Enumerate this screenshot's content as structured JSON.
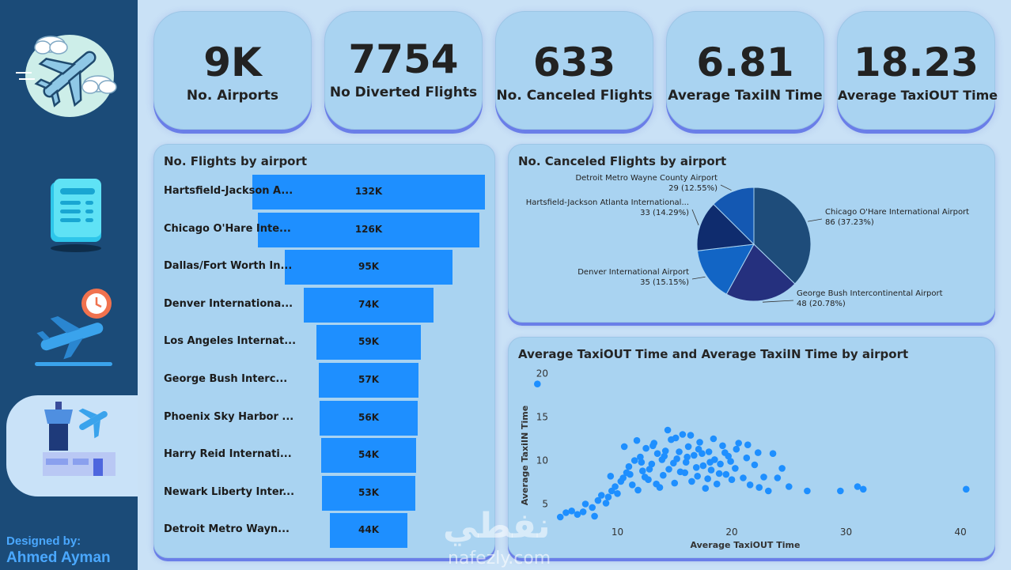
{
  "sidebar": {
    "designer_line1": "Designed by:",
    "designer_line2": "Ahmed Ayman",
    "icons": [
      "airplane-clouds-icon",
      "document-list-icon",
      "departure-clock-icon",
      "control-tower-icon"
    ]
  },
  "kpis": [
    {
      "value": "9K",
      "label": "No. Airports"
    },
    {
      "value": "7754",
      "label": "No Diverted Flights"
    },
    {
      "value": "633",
      "label": "No. Canceled Flights"
    },
    {
      "value": "6.81",
      "label": "Average TaxiIN Time"
    },
    {
      "value": "18.23",
      "label": "Average TaxiOUT Time"
    }
  ],
  "watermark": {
    "arabic": "نفطي",
    "latin": "nafezly.com"
  },
  "colors": {
    "bar": "#1e8fff",
    "sidebar": "#1b4b78",
    "scatter": "#1e8fff"
  },
  "chart_data": [
    {
      "type": "bar",
      "title": "No. Flights by airport",
      "orientation": "horizontal-funnel",
      "categories": [
        "Hartsfield-Jackson A...",
        "Chicago O'Hare Inte...",
        "Dallas/Fort Worth In...",
        "Denver Internationa...",
        "Los Angeles Internat...",
        "George Bush Interc...",
        "Phoenix Sky Harbor ...",
        "Harry Reid Internati...",
        "Newark Liberty Inter...",
        "Detroit Metro Wayn..."
      ],
      "values": [
        132,
        126,
        95,
        74,
        59,
        57,
        56,
        54,
        53,
        44
      ],
      "labels": [
        "132K",
        "126K",
        "95K",
        "74K",
        "59K",
        "57K",
        "56K",
        "54K",
        "53K",
        "44K"
      ]
    },
    {
      "type": "pie",
      "title": "No. Canceled Flights by airport",
      "slices": [
        {
          "name": "Chicago O'Hare International Airport",
          "value": 86,
          "pct": "37.23%",
          "label": "86 (37.23%)",
          "color": "#1e4c7a"
        },
        {
          "name": "George Bush Intercontinental Airport",
          "value": 48,
          "pct": "20.78%",
          "label": "48 (20.78%)",
          "color": "#25307e"
        },
        {
          "name": "Denver International Airport",
          "value": 35,
          "pct": "15.15%",
          "label": "35 (15.15%)",
          "color": "#1265c5"
        },
        {
          "name": "Hartsfield-Jackson Atlanta International...",
          "value": 33,
          "pct": "14.29%",
          "label": "33 (14.29%)",
          "color": "#0f2c6e"
        },
        {
          "name": "Detroit Metro Wayne County Airport",
          "value": 29,
          "pct": "12.55%",
          "label": "29 (12.55%)",
          "color": "#1458b2"
        }
      ]
    },
    {
      "type": "scatter",
      "title": "Average TaxiOUT Time and Average TaxiIN Time by airport",
      "xlabel": "Average TaxiOUT Time",
      "ylabel": "Average TaxiIN Time",
      "xlim": [
        4.5,
        42
      ],
      "ylim": [
        2.5,
        20.5
      ],
      "xticks": [
        10,
        20,
        30,
        40
      ],
      "yticks": [
        5,
        10,
        15,
        20
      ],
      "points": [
        [
          3.0,
          18.8
        ],
        [
          5.0,
          3.5
        ],
        [
          5.5,
          4.0
        ],
        [
          6.0,
          4.2
        ],
        [
          6.5,
          3.8
        ],
        [
          7.0,
          4.1
        ],
        [
          7.2,
          5.0
        ],
        [
          7.8,
          4.6
        ],
        [
          8.0,
          3.6
        ],
        [
          8.3,
          5.4
        ],
        [
          8.6,
          6.0
        ],
        [
          9.0,
          5.1
        ],
        [
          9.2,
          5.8
        ],
        [
          9.5,
          6.5
        ],
        [
          9.8,
          7.0
        ],
        [
          10.0,
          6.2
        ],
        [
          10.3,
          7.6
        ],
        [
          10.5,
          8.0
        ],
        [
          10.8,
          8.6
        ],
        [
          11.0,
          9.3
        ],
        [
          11.3,
          7.2
        ],
        [
          11.5,
          10.0
        ],
        [
          11.8,
          6.6
        ],
        [
          12.0,
          10.4
        ],
        [
          12.2,
          8.8
        ],
        [
          12.5,
          11.4
        ],
        [
          12.7,
          7.8
        ],
        [
          13.0,
          9.6
        ],
        [
          13.2,
          12.0
        ],
        [
          13.5,
          10.8
        ],
        [
          13.7,
          6.9
        ],
        [
          14.0,
          8.3
        ],
        [
          14.2,
          11.1
        ],
        [
          14.5,
          9.0
        ],
        [
          14.7,
          12.4
        ],
        [
          15.0,
          7.4
        ],
        [
          15.2,
          10.2
        ],
        [
          15.5,
          8.7
        ],
        [
          15.7,
          13.0
        ],
        [
          16.0,
          9.8
        ],
        [
          16.2,
          11.6
        ],
        [
          16.5,
          7.6
        ],
        [
          16.7,
          10.6
        ],
        [
          17.0,
          8.2
        ],
        [
          17.2,
          12.1
        ],
        [
          17.5,
          9.4
        ],
        [
          17.7,
          6.8
        ],
        [
          18.0,
          11.0
        ],
        [
          18.2,
          8.9
        ],
        [
          18.5,
          10.1
        ],
        [
          18.7,
          7.3
        ],
        [
          19.0,
          9.6
        ],
        [
          19.2,
          11.7
        ],
        [
          19.5,
          8.4
        ],
        [
          19.7,
          10.5
        ],
        [
          20.0,
          7.8
        ],
        [
          20.3,
          9.1
        ],
        [
          20.6,
          12.0
        ],
        [
          21.0,
          8.0
        ],
        [
          21.3,
          10.3
        ],
        [
          21.6,
          7.2
        ],
        [
          22.0,
          9.5
        ],
        [
          22.4,
          6.9
        ],
        [
          22.8,
          8.1
        ],
        [
          23.2,
          6.5
        ],
        [
          23.6,
          10.8
        ],
        [
          24.0,
          8.0
        ],
        [
          24.4,
          9.1
        ],
        [
          25.0,
          7.0
        ],
        [
          26.6,
          6.5
        ],
        [
          29.5,
          6.5
        ],
        [
          31.0,
          7.0
        ],
        [
          31.5,
          6.7
        ],
        [
          40.5,
          6.7
        ],
        [
          9.4,
          8.2
        ],
        [
          10.6,
          11.6
        ],
        [
          11.7,
          12.3
        ],
        [
          12.4,
          8.1
        ],
        [
          13.4,
          7.3
        ],
        [
          14.4,
          13.5
        ],
        [
          15.4,
          11.0
        ],
        [
          16.4,
          12.9
        ],
        [
          17.4,
          10.8
        ],
        [
          18.4,
          12.5
        ],
        [
          19.4,
          10.9
        ],
        [
          20.4,
          11.3
        ],
        [
          21.4,
          11.8
        ],
        [
          22.3,
          10.9
        ],
        [
          12.8,
          9.0
        ],
        [
          13.9,
          10.1
        ],
        [
          14.9,
          9.7
        ],
        [
          15.9,
          8.6
        ],
        [
          16.9,
          9.2
        ],
        [
          17.9,
          7.9
        ],
        [
          18.9,
          8.5
        ],
        [
          19.9,
          9.9
        ],
        [
          11.1,
          8.4
        ],
        [
          12.1,
          9.8
        ],
        [
          13.1,
          11.7
        ],
        [
          14.1,
          10.5
        ],
        [
          15.1,
          12.6
        ],
        [
          16.1,
          10.4
        ],
        [
          17.1,
          11.3
        ],
        [
          18.1,
          9.8
        ]
      ]
    }
  ]
}
